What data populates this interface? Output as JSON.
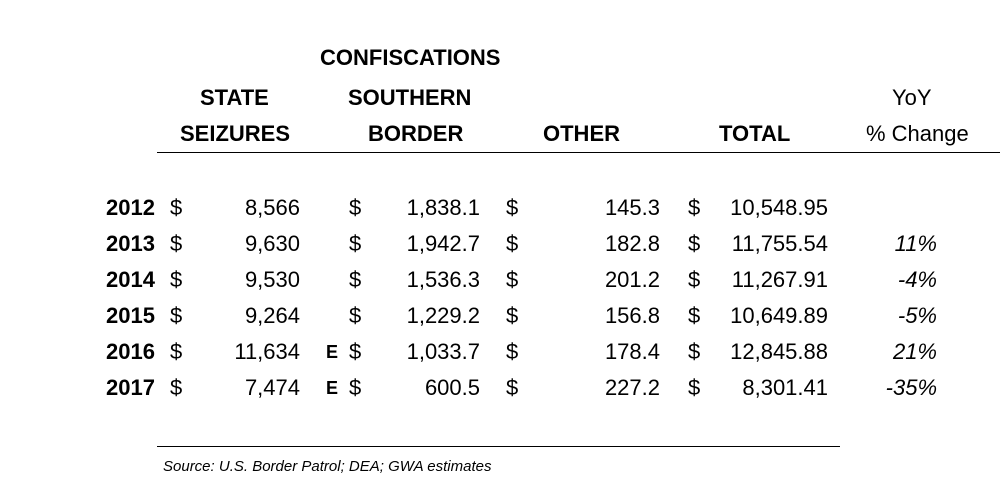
{
  "chart_data": {
    "type": "table",
    "headers": {
      "state": [
        "STATE",
        "SEIZURES"
      ],
      "border": [
        "CONFISCATIONS",
        "SOUTHERN",
        "BORDER"
      ],
      "other": "OTHER",
      "total": "TOTAL",
      "yoy": [
        "YoY",
        "% Change"
      ]
    },
    "currency": "$",
    "rows": [
      {
        "year": "2012",
        "state": "8,566",
        "state_flag": "",
        "border": "1,838.1",
        "other": "145.3",
        "total": "10,548.95",
        "yoy": ""
      },
      {
        "year": "2013",
        "state": "9,630",
        "state_flag": "",
        "border": "1,942.7",
        "other": "182.8",
        "total": "11,755.54",
        "yoy": "11%"
      },
      {
        "year": "2014",
        "state": "9,530",
        "state_flag": "",
        "border": "1,536.3",
        "other": "201.2",
        "total": "11,267.91",
        "yoy": "-4%"
      },
      {
        "year": "2015",
        "state": "9,264",
        "state_flag": "",
        "border": "1,229.2",
        "other": "156.8",
        "total": "10,649.89",
        "yoy": "-5%"
      },
      {
        "year": "2016",
        "state": "11,634",
        "state_flag": "E",
        "border": "1,033.7",
        "other": "178.4",
        "total": "12,845.88",
        "yoy": "21%"
      },
      {
        "year": "2017",
        "state": "7,474",
        "state_flag": "E",
        "border": "600.5",
        "other": "227.2",
        "total": "8,301.41",
        "yoy": "-35%"
      }
    ],
    "source": "Source: U.S. Border Patrol; DEA; GWA estimates"
  }
}
